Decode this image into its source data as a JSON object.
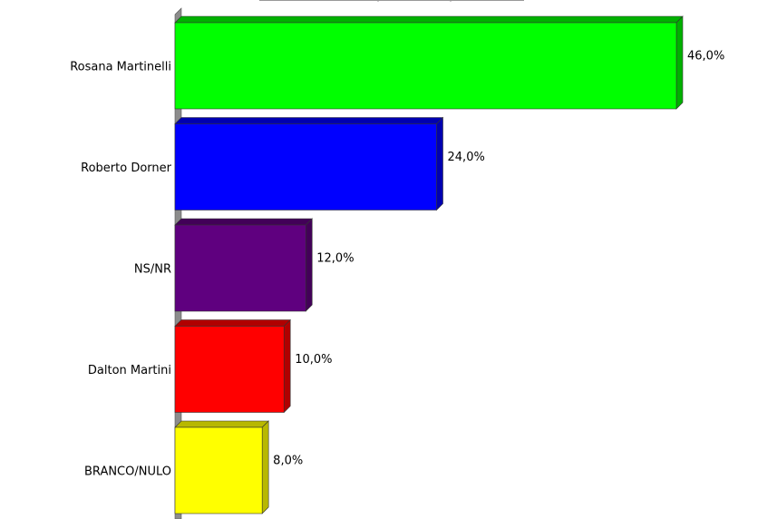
{
  "chart_data": {
    "type": "bar",
    "orientation": "horizontal",
    "style": "3d",
    "categories": [
      "Rosana Martinelli",
      "Roberto Dorner",
      "NS/NR",
      "Dalton Martini",
      "BRANCO/NULO"
    ],
    "values": [
      46.0,
      24.0,
      12.0,
      10.0,
      8.0
    ],
    "data_labels": [
      "46,0%",
      "24,0%",
      "12,0%",
      "10,0%",
      "8,0%"
    ],
    "colors": [
      "#00ff00",
      "#0000ff",
      "#5f007f",
      "#ff0000",
      "#ffff00"
    ],
    "side_colors": [
      "#00b000",
      "#0000b0",
      "#420058",
      "#b00000",
      "#b8b800"
    ],
    "xlim": [
      0,
      46
    ],
    "grid": false,
    "legend": "none",
    "title": "",
    "xlabel": "",
    "ylabel": ""
  }
}
